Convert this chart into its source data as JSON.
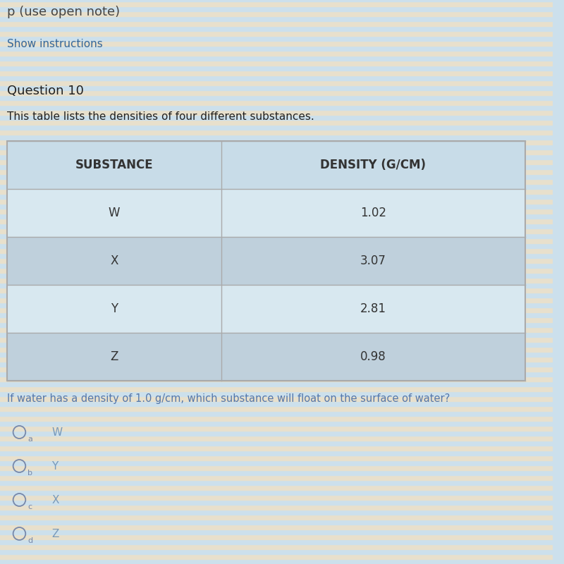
{
  "page_bg_color1": "#cce0ec",
  "page_bg_color2": "#e8e0cc",
  "show_instructions_text": "Show instructions",
  "show_instructions_color": "#336699",
  "top_clipped_text": "p (use open note)",
  "question_label": "Question 10",
  "description": "This table lists the densities of four different substances.",
  "table_headers": [
    "SUBSTANCE",
    "DENSITY (G/CM)"
  ],
  "table_rows": [
    [
      "W",
      "1.02"
    ],
    [
      "X",
      "3.07"
    ],
    [
      "Y",
      "2.81"
    ],
    [
      "Z",
      "0.98"
    ]
  ],
  "table_bg_header": "#c8dce8",
  "table_bg_row_light": "#d8e8f0",
  "table_bg_row_dark": "#bfd0dc",
  "table_border_color": "#aaaaaa",
  "table_text_color": "#333333",
  "question_text": "If water has a density of 1.0 g/cm, which substance will float on the surface of water?",
  "question_text_color": "#5577aa",
  "options": [
    [
      "a",
      "W"
    ],
    [
      "b",
      "Y"
    ],
    [
      "c",
      "X"
    ],
    [
      "d",
      "Z"
    ]
  ],
  "option_letter_color": "#7788aa",
  "option_value_color": "#7799bb",
  "circle_color": "#7788aa",
  "text_color_dark": "#222222"
}
